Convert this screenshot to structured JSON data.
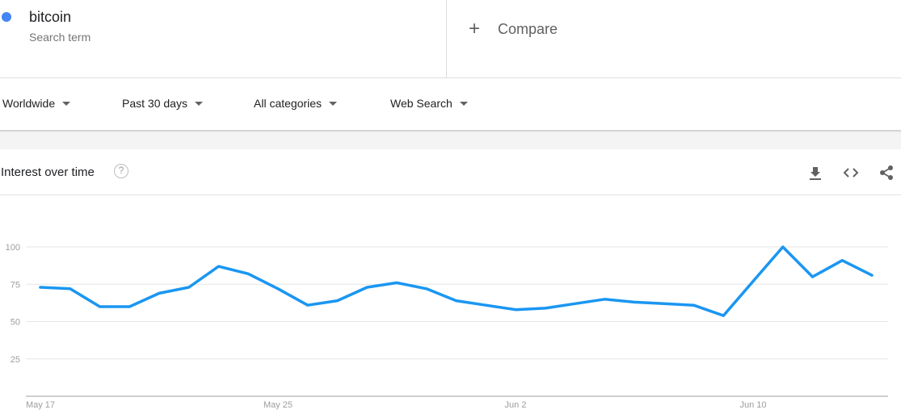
{
  "term": {
    "name": "bitcoin",
    "subtitle": "Search term",
    "color": "#4285f4"
  },
  "compare": {
    "label": "Compare",
    "icon": "plus-icon"
  },
  "filters": {
    "region": "Worldwide",
    "time": "Past 30 days",
    "category": "All categories",
    "property": "Web Search"
  },
  "chart_header": {
    "title": "Interest over time",
    "help_icon": "help-circle-icon",
    "actions": [
      "download-icon",
      "embed-code-icon",
      "share-icon"
    ]
  },
  "chart_data": {
    "type": "line",
    "series": [
      {
        "values": [
          73,
          72,
          60,
          60,
          69,
          73,
          87,
          82,
          72,
          61,
          64,
          73,
          76,
          72,
          64,
          61,
          58,
          59,
          62,
          65,
          63,
          62,
          61,
          54,
          77,
          100,
          80,
          91,
          81
        ]
      }
    ],
    "x_tick_labels": [
      "May 17",
      "May 25",
      "Jun 2",
      "Jun 10"
    ],
    "y_tick_labels": [
      "100",
      "75",
      "50",
      "25"
    ],
    "ylim": [
      0,
      100
    ],
    "grid": true,
    "line_color": "#1a96f2"
  }
}
